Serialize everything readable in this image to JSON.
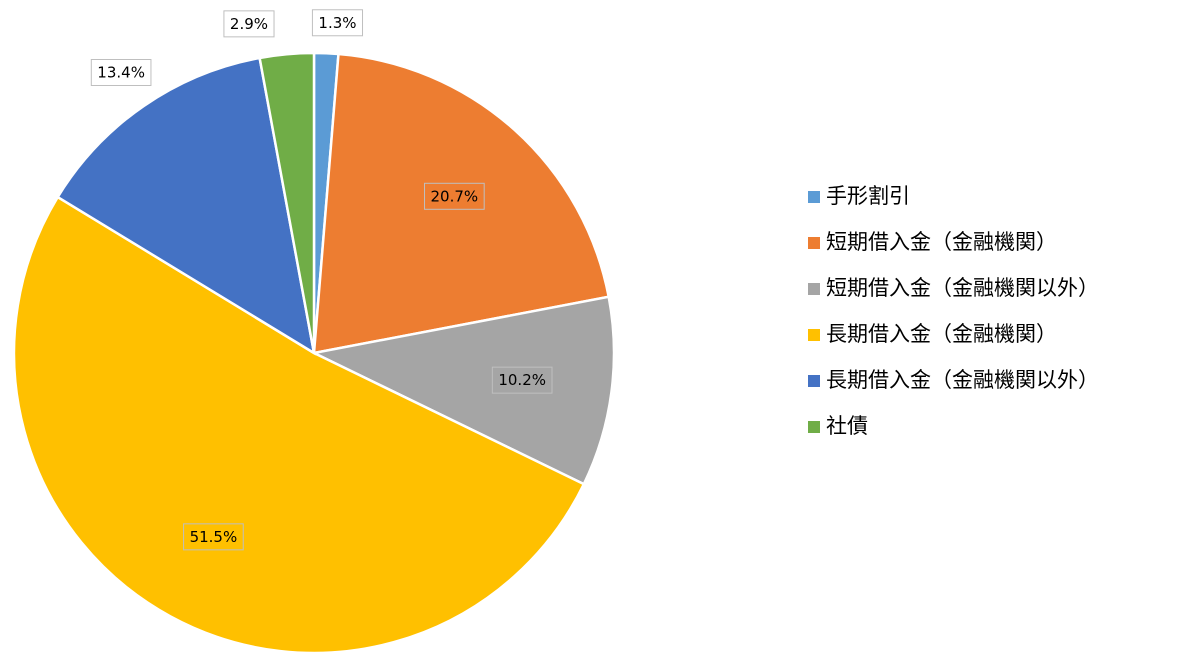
{
  "chart_data": {
    "type": "pie",
    "categories": [
      "手形割引",
      "短期借入金（金融機関）",
      "短期借入金（金融機関以外）",
      "長期借入金（金融機関）",
      "長期借入金（金融機関以外）",
      "社債"
    ],
    "values": [
      1.3,
      20.7,
      10.2,
      51.5,
      13.4,
      2.9
    ],
    "value_labels": [
      "1.3%",
      "20.7%",
      "10.2%",
      "51.5%",
      "13.4%",
      "2.9%"
    ],
    "colors": [
      "#5b9bd5",
      "#ed7d31",
      "#a5a5a5",
      "#ffc000",
      "#4472c4",
      "#70ad47"
    ],
    "legend": "right"
  }
}
